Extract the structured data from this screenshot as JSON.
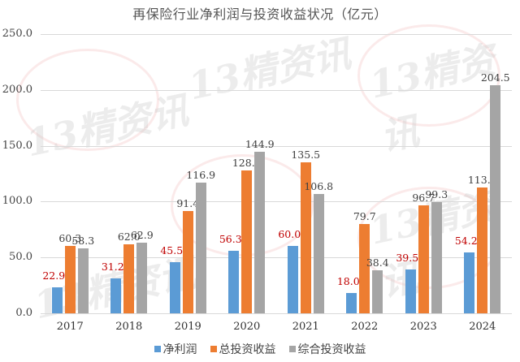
{
  "title": "再保险行业净利润与投资收益状况（亿元）",
  "watermark": "13精资讯",
  "colors": {
    "net_profit": "#5b9bd5",
    "total_investment": "#ed7d31",
    "comprehensive_investment": "#a5a5a5",
    "net_profit_label": "#c00000",
    "label": "#404040"
  },
  "legend": [
    {
      "name": "净利润",
      "color": "#5b9bd5"
    },
    {
      "name": "总投资收益",
      "color": "#ed7d31"
    },
    {
      "name": "综合投资收益",
      "color": "#a5a5a5"
    }
  ],
  "y_ticks": [
    "250.0",
    "200.0",
    "150.0",
    "100.0",
    "50.0",
    "0.0"
  ],
  "chart_data": {
    "type": "bar",
    "title": "再保险行业净利润与投资收益状况（亿元）",
    "xlabel": "",
    "ylabel": "",
    "ylim": [
      0,
      250
    ],
    "grid": true,
    "legend_position": "bottom",
    "categories": [
      "2017",
      "2018",
      "2019",
      "2020",
      "2021",
      "2022",
      "2023",
      "2024"
    ],
    "series": [
      {
        "name": "净利润",
        "values": [
          22.9,
          31.2,
          45.5,
          56.3,
          60.0,
          18.0,
          39.5,
          54.2
        ]
      },
      {
        "name": "总投资收益",
        "values": [
          60.3,
          62.0,
          91.4,
          128.0,
          135.5,
          79.7,
          96.7,
          113.0
        ]
      },
      {
        "name": "综合投资收益",
        "values": [
          58.3,
          62.9,
          116.9,
          144.9,
          106.8,
          38.4,
          99.3,
          204.5
        ]
      }
    ],
    "data_labels": {
      "净利润": [
        "22.9",
        "31.2",
        "45.5",
        "56.3",
        "60.0",
        "18.0",
        "39.5",
        "54.2"
      ],
      "总投资收益": [
        "60.3",
        "62.0",
        "91.4",
        "128.0",
        "135.5",
        "79.7",
        "96.7",
        "113.0"
      ],
      "综合投资收益": [
        "58.3",
        "62.9",
        "116.9",
        "144.9",
        "106.8",
        "38.4",
        "99.3",
        "204.5"
      ]
    }
  }
}
